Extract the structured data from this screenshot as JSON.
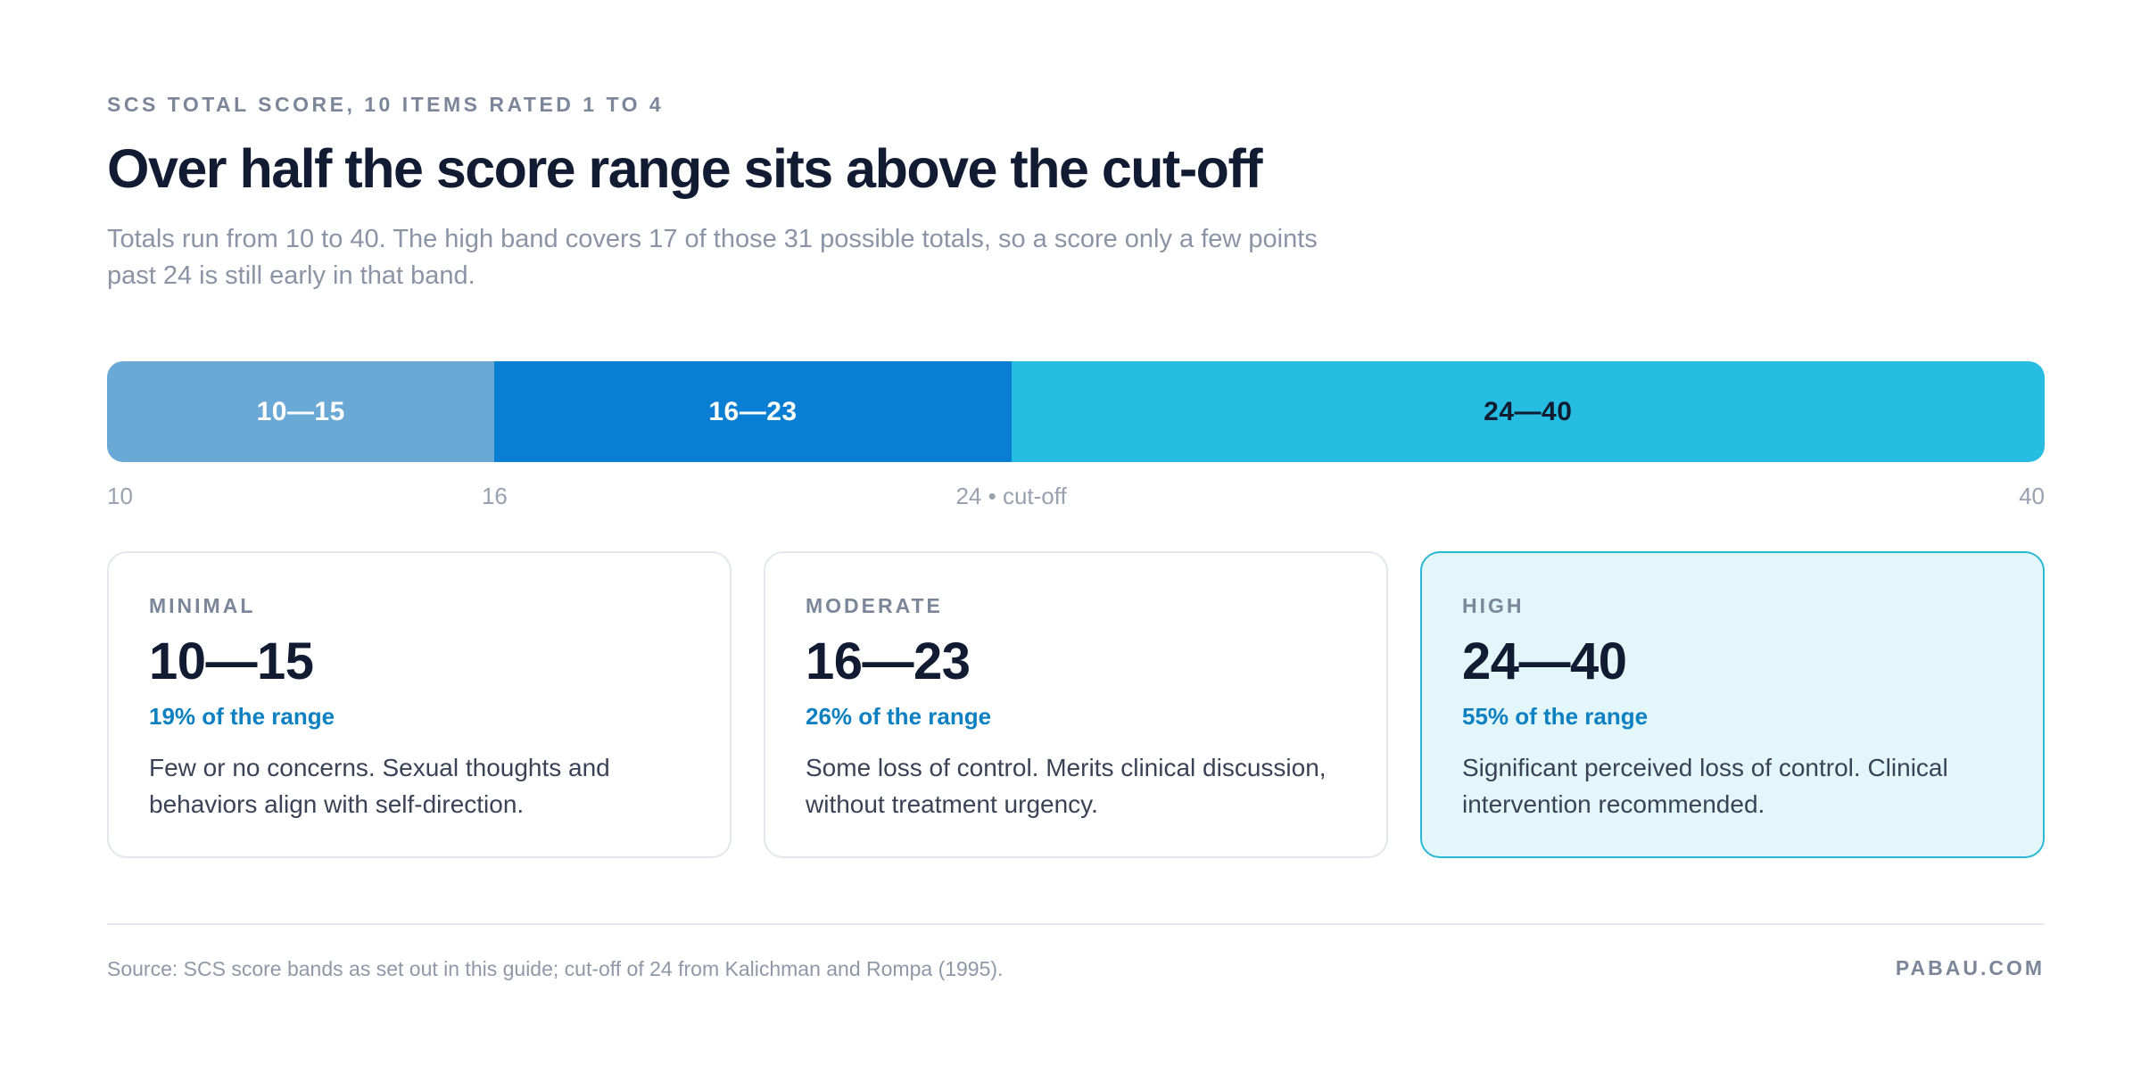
{
  "header": {
    "eyebrow": "SCS TOTAL SCORE, 10 ITEMS RATED 1 TO 4",
    "title": "Over half the score range sits above the cut-off",
    "subtitle": "Totals run from 10 to 40. The high band covers 17 of those 31 possible totals, so a score only a few points past 24 is still early in that band."
  },
  "chart_data": {
    "type": "bar",
    "orientation": "horizontal-stacked-range",
    "xlim": [
      10,
      40
    ],
    "segments": [
      {
        "label": "10—15",
        "start": 10,
        "end": 16,
        "color": "#6aa8d6",
        "text_color": "#ffffff"
      },
      {
        "label": "16—23",
        "start": 16,
        "end": 24,
        "color": "#0a7ed2",
        "text_color": "#ffffff"
      },
      {
        "label": "24—40",
        "start": 24,
        "end": 40,
        "color": "#27bce1",
        "text_color": "#0f1d33"
      }
    ],
    "ticks": [
      {
        "value": 10,
        "label": "10",
        "align": "start"
      },
      {
        "value": 16,
        "label": "16",
        "align": "center"
      },
      {
        "value": 24,
        "label": "24 • cut-off",
        "align": "center"
      },
      {
        "value": 40,
        "label": "40",
        "align": "end"
      }
    ]
  },
  "cards": [
    {
      "label": "MINIMAL",
      "range": "10—15",
      "share": "19% of the range",
      "description": "Few or no concerns. Sexual thoughts and behaviors align with self-direction.",
      "highlight": false
    },
    {
      "label": "MODERATE",
      "range": "16—23",
      "share": "26% of the range",
      "description": "Some loss of control. Merits clinical discussion, without treatment urgency.",
      "highlight": false
    },
    {
      "label": "HIGH",
      "range": "24—40",
      "share": "55% of the range",
      "description": "Significant perceived loss of control. Clinical intervention recommended.",
      "highlight": true
    }
  ],
  "footer": {
    "source": "Source: SCS score bands as set out in this guide; cut-off of 24 from Kalichman and Rompa (1995).",
    "brand": "PABAU.COM"
  }
}
